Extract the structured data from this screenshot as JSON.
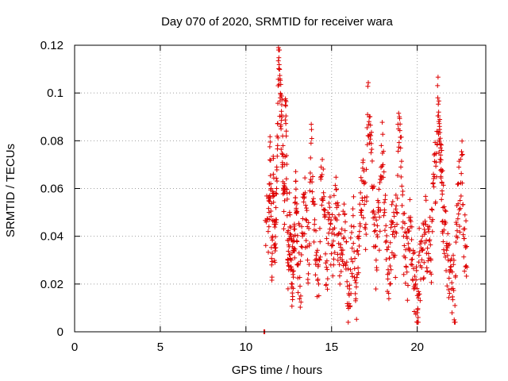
{
  "chart_data": {
    "type": "scatter",
    "title": "Day 070 of 2020, SRMTID for receiver wara",
    "xlabel": "GPS time / hours",
    "ylabel": "SRMTID / TECUs",
    "xlim": [
      0,
      24
    ],
    "ylim": [
      0,
      0.12
    ],
    "xticks": [
      0,
      5,
      10,
      15,
      20
    ],
    "xtick_labels": [
      "0",
      "5",
      "10",
      "15",
      "20"
    ],
    "yticks": [
      0,
      0.02,
      0.04,
      0.06,
      0.08,
      0.1,
      0.12
    ],
    "ytick_labels": [
      "0",
      "0.02",
      "0.04",
      "0.06",
      "0.08",
      "0.1",
      "0.12"
    ],
    "grid": true,
    "marker": "+",
    "color": "#dd0000",
    "series": [
      {
        "name": "SRMTID",
        "x_range": [
          11.0,
          22.9
        ],
        "note_points": "dense noisy series; representative samples below",
        "points": [
          [
            11.05,
            0.0
          ],
          [
            11.08,
            0.0
          ],
          [
            11.1,
            0.0
          ],
          [
            11.3,
            0.042
          ],
          [
            11.35,
            0.05
          ],
          [
            11.4,
            0.072
          ],
          [
            11.45,
            0.062
          ],
          [
            11.5,
            0.028
          ],
          [
            11.55,
            0.04
          ],
          [
            11.6,
            0.066
          ],
          [
            11.65,
            0.045
          ],
          [
            11.7,
            0.035
          ],
          [
            11.75,
            0.052
          ],
          [
            11.8,
            0.069
          ],
          [
            11.85,
            0.078
          ],
          [
            11.9,
            0.119
          ],
          [
            11.95,
            0.11
          ],
          [
            12.0,
            0.098
          ],
          [
            12.05,
            0.085
          ],
          [
            12.1,
            0.09
          ],
          [
            12.15,
            0.07
          ],
          [
            12.2,
            0.06
          ],
          [
            12.25,
            0.045
          ],
          [
            12.3,
            0.095
          ],
          [
            12.35,
            0.082
          ],
          [
            12.4,
            0.058
          ],
          [
            12.45,
            0.03
          ],
          [
            12.5,
            0.026
          ],
          [
            12.55,
            0.05
          ],
          [
            12.6,
            0.04
          ],
          [
            12.65,
            0.03
          ],
          [
            12.7,
            0.02
          ],
          [
            12.75,
            0.024
          ],
          [
            12.8,
            0.035
          ],
          [
            12.85,
            0.043
          ],
          [
            12.9,
            0.063
          ],
          [
            12.95,
            0.05
          ],
          [
            13.0,
            0.028
          ],
          [
            13.1,
            0.033
          ],
          [
            13.2,
            0.015
          ],
          [
            13.3,
            0.04
          ],
          [
            13.4,
            0.056
          ],
          [
            13.5,
            0.047
          ],
          [
            13.6,
            0.03
          ],
          [
            13.7,
            0.036
          ],
          [
            13.8,
            0.079
          ],
          [
            13.9,
            0.065
          ],
          [
            14.0,
            0.045
          ],
          [
            14.1,
            0.032
          ],
          [
            14.2,
            0.022
          ],
          [
            14.3,
            0.03
          ],
          [
            14.4,
            0.065
          ],
          [
            14.5,
            0.055
          ],
          [
            14.6,
            0.048
          ],
          [
            14.7,
            0.027
          ],
          [
            14.8,
            0.037
          ],
          [
            14.9,
            0.043
          ],
          [
            15.0,
            0.036
          ],
          [
            15.1,
            0.038
          ],
          [
            15.2,
            0.048
          ],
          [
            15.3,
            0.052
          ],
          [
            15.4,
            0.041
          ],
          [
            15.5,
            0.031
          ],
          [
            15.6,
            0.043
          ],
          [
            15.7,
            0.039
          ],
          [
            15.8,
            0.046
          ],
          [
            15.9,
            0.021
          ],
          [
            16.0,
            0.016
          ],
          [
            16.1,
            0.026
          ],
          [
            16.2,
            0.035
          ],
          [
            16.3,
            0.044
          ],
          [
            16.4,
            0.013
          ],
          [
            16.5,
            0.024
          ],
          [
            16.6,
            0.04
          ],
          [
            16.7,
            0.05
          ],
          [
            16.8,
            0.055
          ],
          [
            16.9,
            0.062
          ],
          [
            17.0,
            0.045
          ],
          [
            17.1,
            0.091
          ],
          [
            17.2,
            0.09
          ],
          [
            17.3,
            0.075
          ],
          [
            17.4,
            0.06
          ],
          [
            17.5,
            0.042
          ],
          [
            17.6,
            0.03
          ],
          [
            17.7,
            0.055
          ],
          [
            17.8,
            0.048
          ],
          [
            17.9,
            0.078
          ],
          [
            18.0,
            0.07
          ],
          [
            18.1,
            0.05
          ],
          [
            18.2,
            0.038
          ],
          [
            18.3,
            0.026
          ],
          [
            18.4,
            0.02
          ],
          [
            18.5,
            0.045
          ],
          [
            18.6,
            0.042
          ],
          [
            18.7,
            0.032
          ],
          [
            18.8,
            0.05
          ],
          [
            18.9,
            0.085
          ],
          [
            19.0,
            0.087
          ],
          [
            19.1,
            0.061
          ],
          [
            19.2,
            0.04
          ],
          [
            19.3,
            0.031
          ],
          [
            19.4,
            0.025
          ],
          [
            19.5,
            0.035
          ],
          [
            19.6,
            0.044
          ],
          [
            19.7,
            0.028
          ],
          [
            19.8,
            0.018
          ],
          [
            19.9,
            0.02
          ],
          [
            20.0,
            0.008
          ],
          [
            20.05,
            0.006
          ],
          [
            20.1,
            0.032
          ],
          [
            20.2,
            0.022
          ],
          [
            20.3,
            0.04
          ],
          [
            20.4,
            0.029
          ],
          [
            20.5,
            0.045
          ],
          [
            20.6,
            0.035
          ],
          [
            20.7,
            0.038
          ],
          [
            20.8,
            0.03
          ],
          [
            20.9,
            0.047
          ],
          [
            21.0,
            0.065
          ],
          [
            21.1,
            0.071
          ],
          [
            21.2,
            0.098
          ],
          [
            21.25,
            0.092
          ],
          [
            21.3,
            0.086
          ],
          [
            21.35,
            0.077
          ],
          [
            21.4,
            0.068
          ],
          [
            21.45,
            0.059
          ],
          [
            21.5,
            0.052
          ],
          [
            21.6,
            0.045
          ],
          [
            21.7,
            0.036
          ],
          [
            21.8,
            0.03
          ],
          [
            21.9,
            0.025
          ],
          [
            22.0,
            0.018
          ],
          [
            22.1,
            0.032
          ],
          [
            22.2,
            0.011
          ],
          [
            22.3,
            0.045
          ],
          [
            22.4,
            0.062
          ],
          [
            22.5,
            0.055
          ],
          [
            22.6,
            0.074
          ],
          [
            22.7,
            0.043
          ],
          [
            22.8,
            0.036
          ],
          [
            22.9,
            0.027
          ]
        ]
      }
    ]
  }
}
